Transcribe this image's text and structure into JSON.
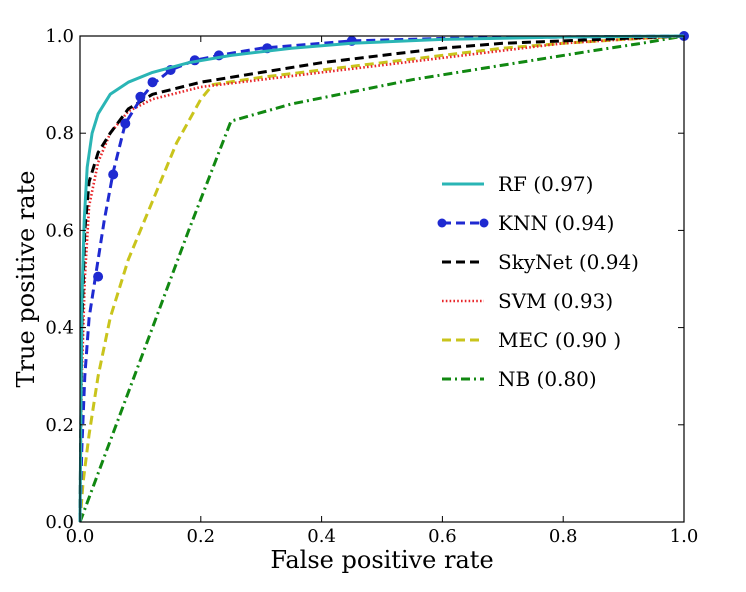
{
  "chart_data": {
    "type": "line",
    "title": "",
    "xlabel": "False positive rate",
    "ylabel": "True positive rate",
    "xlim": [
      0,
      1
    ],
    "ylim": [
      0,
      1
    ],
    "xticks": [
      "0.0",
      "0.2",
      "0.4",
      "0.6",
      "0.8",
      "1.0"
    ],
    "yticks": [
      "0.0",
      "0.2",
      "0.4",
      "0.6",
      "0.8",
      "1.0"
    ],
    "grid": false,
    "legend_position": "center-right",
    "series": [
      {
        "name": "RF (0.97)",
        "color": "#2ab5b5",
        "style": "solid",
        "points": [
          [
            0,
            0
          ],
          [
            0.003,
            0.45
          ],
          [
            0.007,
            0.62
          ],
          [
            0.012,
            0.73
          ],
          [
            0.02,
            0.8
          ],
          [
            0.03,
            0.84
          ],
          [
            0.05,
            0.88
          ],
          [
            0.08,
            0.905
          ],
          [
            0.12,
            0.925
          ],
          [
            0.18,
            0.945
          ],
          [
            0.25,
            0.96
          ],
          [
            0.35,
            0.975
          ],
          [
            0.45,
            0.985
          ],
          [
            0.6,
            0.993
          ],
          [
            0.8,
            0.998
          ],
          [
            1,
            1
          ]
        ]
      },
      {
        "name": "KNN (0.94)",
        "color": "#1f2ad1",
        "style": "dashed-dots",
        "points": [
          [
            0,
            0
          ],
          [
            0.003,
            0.15
          ],
          [
            0.008,
            0.3
          ],
          [
            0.015,
            0.42
          ],
          [
            0.025,
            0.5
          ],
          [
            0.04,
            0.62
          ],
          [
            0.055,
            0.72
          ],
          [
            0.075,
            0.82
          ],
          [
            0.1,
            0.87
          ],
          [
            0.12,
            0.9
          ],
          [
            0.15,
            0.93
          ],
          [
            0.19,
            0.95
          ],
          [
            0.23,
            0.96
          ],
          [
            0.3,
            0.975
          ],
          [
            0.45,
            0.99
          ],
          [
            0.6,
            0.995
          ],
          [
            0.8,
            0.998
          ],
          [
            1,
            1
          ]
        ],
        "markers": [
          [
            0.03,
            0.505
          ],
          [
            0.055,
            0.715
          ],
          [
            0.075,
            0.82
          ],
          [
            0.1,
            0.875
          ],
          [
            0.12,
            0.905
          ],
          [
            0.15,
            0.93
          ],
          [
            0.19,
            0.95
          ],
          [
            0.23,
            0.96
          ],
          [
            0.31,
            0.975
          ],
          [
            0.45,
            0.99
          ],
          [
            1,
            1
          ]
        ]
      },
      {
        "name": "SkyNet (0.94)",
        "color": "#000000",
        "style": "dashed",
        "points": [
          [
            0,
            0
          ],
          [
            0.003,
            0.4
          ],
          [
            0.008,
            0.6
          ],
          [
            0.015,
            0.7
          ],
          [
            0.03,
            0.76
          ],
          [
            0.05,
            0.8
          ],
          [
            0.08,
            0.85
          ],
          [
            0.12,
            0.88
          ],
          [
            0.2,
            0.905
          ],
          [
            0.3,
            0.925
          ],
          [
            0.4,
            0.945
          ],
          [
            0.5,
            0.96
          ],
          [
            0.6,
            0.975
          ],
          [
            0.7,
            0.985
          ],
          [
            0.8,
            0.99
          ],
          [
            0.9,
            0.995
          ],
          [
            1,
            1
          ]
        ]
      },
      {
        "name": "SVM (0.93)",
        "color": "#e8262a",
        "style": "dotted",
        "points": [
          [
            0,
            0
          ],
          [
            0.003,
            0.3
          ],
          [
            0.008,
            0.5
          ],
          [
            0.015,
            0.65
          ],
          [
            0.03,
            0.74
          ],
          [
            0.05,
            0.8
          ],
          [
            0.08,
            0.845
          ],
          [
            0.12,
            0.87
          ],
          [
            0.2,
            0.895
          ],
          [
            0.3,
            0.91
          ],
          [
            0.4,
            0.925
          ],
          [
            0.5,
            0.94
          ],
          [
            0.6,
            0.955
          ],
          [
            0.7,
            0.97
          ],
          [
            0.8,
            0.985
          ],
          [
            0.9,
            0.993
          ],
          [
            1,
            1
          ]
        ]
      },
      {
        "name": "MEC (0.90 )",
        "color": "#c9c41c",
        "style": "dashed",
        "points": [
          [
            0,
            0
          ],
          [
            0.005,
            0.08
          ],
          [
            0.015,
            0.18
          ],
          [
            0.03,
            0.3
          ],
          [
            0.05,
            0.42
          ],
          [
            0.08,
            0.54
          ],
          [
            0.12,
            0.66
          ],
          [
            0.16,
            0.78
          ],
          [
            0.2,
            0.87
          ],
          [
            0.22,
            0.9
          ],
          [
            0.3,
            0.915
          ],
          [
            0.4,
            0.93
          ],
          [
            0.5,
            0.945
          ],
          [
            0.6,
            0.96
          ],
          [
            0.7,
            0.975
          ],
          [
            0.8,
            0.985
          ],
          [
            0.9,
            0.993
          ],
          [
            1,
            1
          ]
        ]
      },
      {
        "name": "NB (0.80)",
        "color": "#118811",
        "style": "dash-dot",
        "points": [
          [
            0,
            0
          ],
          [
            0.06,
            0.2
          ],
          [
            0.12,
            0.4
          ],
          [
            0.18,
            0.6
          ],
          [
            0.25,
            0.825
          ],
          [
            0.35,
            0.86
          ],
          [
            0.45,
            0.885
          ],
          [
            0.55,
            0.91
          ],
          [
            0.65,
            0.93
          ],
          [
            0.75,
            0.95
          ],
          [
            0.85,
            0.97
          ],
          [
            0.93,
            0.985
          ],
          [
            1,
            1
          ]
        ]
      }
    ]
  }
}
